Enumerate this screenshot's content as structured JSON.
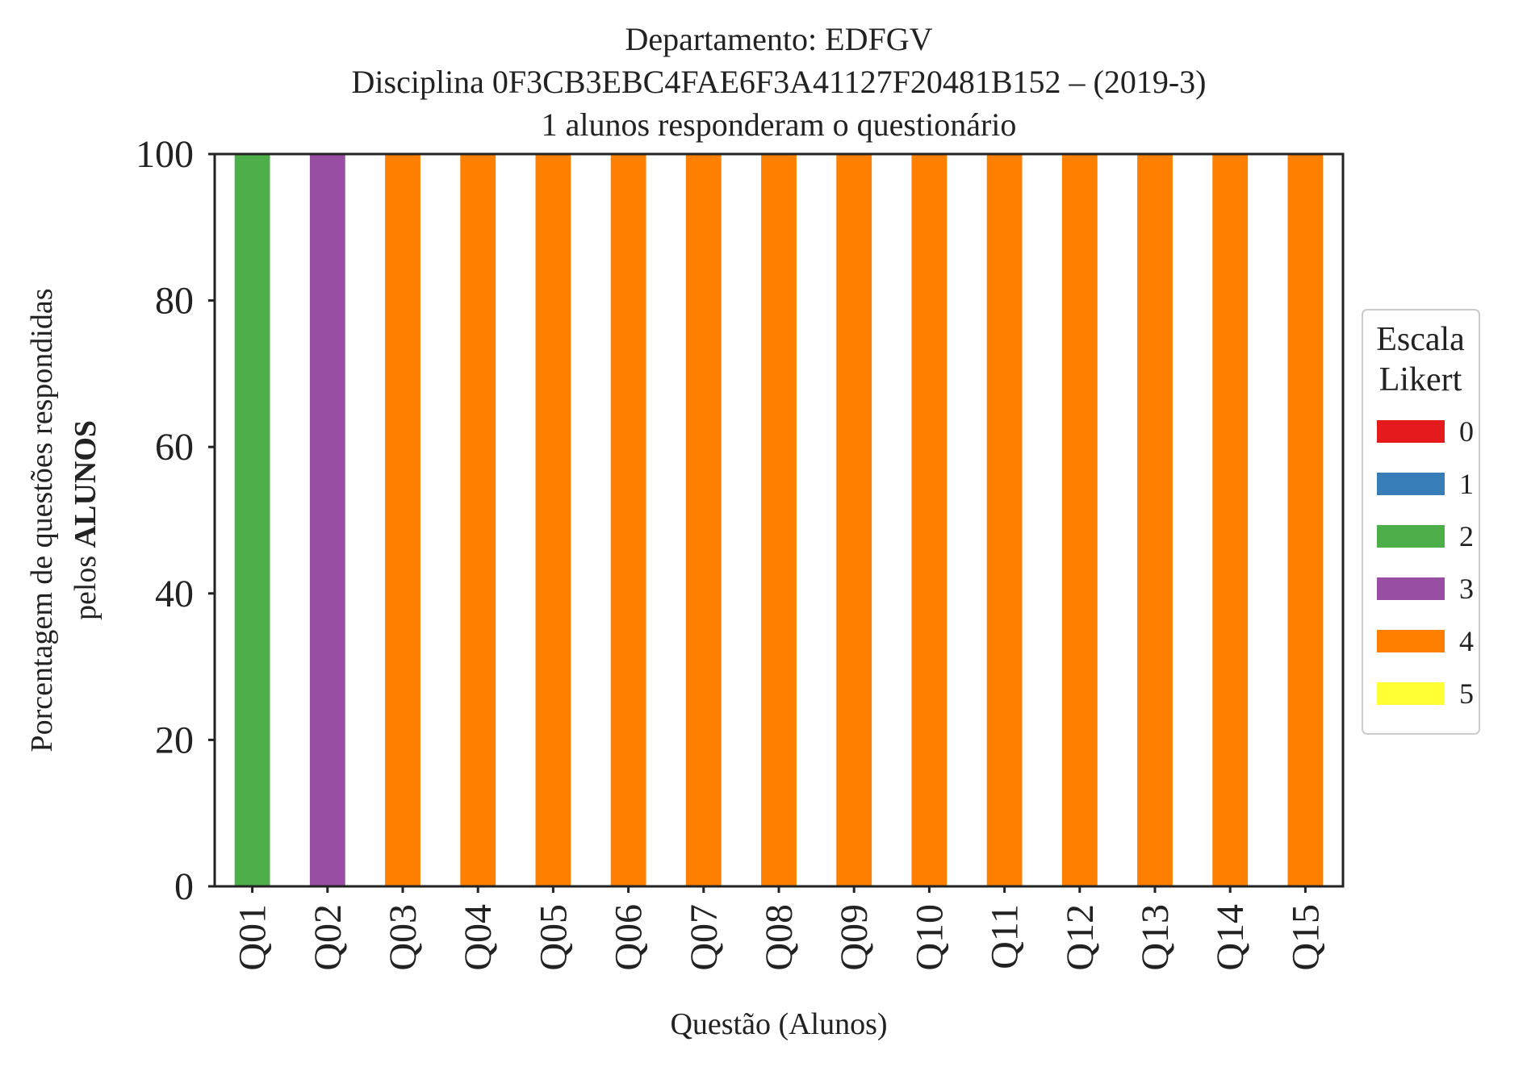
{
  "chart_data": {
    "type": "bar",
    "stacked": true,
    "title_lines": [
      "Departamento: EDFGV",
      "Disciplina 0F3CB3EBC4FAE6F3A41127F20481B152 – (2019-3)",
      "1 alunos responderam o questionário"
    ],
    "xlabel": "Questão (Alunos)",
    "ylabel_line1": "Porcentagem de questões respondidas",
    "ylabel_line2_prefix": "pelos ",
    "ylabel_line2_bold": "ALUNOS",
    "ylim": [
      0,
      100
    ],
    "yticks": [
      "0",
      "20",
      "40",
      "60",
      "80",
      "100"
    ],
    "grid": false,
    "legend_position": "right",
    "legend_title_lines": [
      "Escala",
      "Likert"
    ],
    "categories": [
      "Q01",
      "Q02",
      "Q03",
      "Q04",
      "Q05",
      "Q06",
      "Q07",
      "Q08",
      "Q09",
      "Q10",
      "Q11",
      "Q12",
      "Q13",
      "Q14",
      "Q15"
    ],
    "series": [
      {
        "name": "0",
        "color": "#e41a1c",
        "values": [
          0,
          0,
          0,
          0,
          0,
          0,
          0,
          0,
          0,
          0,
          0,
          0,
          0,
          0,
          0
        ]
      },
      {
        "name": "1",
        "color": "#377eb8",
        "values": [
          0,
          0,
          0,
          0,
          0,
          0,
          0,
          0,
          0,
          0,
          0,
          0,
          0,
          0,
          0
        ]
      },
      {
        "name": "2",
        "color": "#4daf4a",
        "values": [
          100,
          0,
          0,
          0,
          0,
          0,
          0,
          0,
          0,
          0,
          0,
          0,
          0,
          0,
          0
        ]
      },
      {
        "name": "3",
        "color": "#984ea3",
        "values": [
          0,
          100,
          0,
          0,
          0,
          0,
          0,
          0,
          0,
          0,
          0,
          0,
          0,
          0,
          0
        ]
      },
      {
        "name": "4",
        "color": "#ff7f00",
        "values": [
          0,
          0,
          100,
          100,
          100,
          100,
          100,
          100,
          100,
          100,
          100,
          100,
          100,
          100,
          100
        ]
      },
      {
        "name": "5",
        "color": "#ffff33",
        "values": [
          0,
          0,
          0,
          0,
          0,
          0,
          0,
          0,
          0,
          0,
          0,
          0,
          0,
          0,
          0
        ]
      }
    ]
  }
}
